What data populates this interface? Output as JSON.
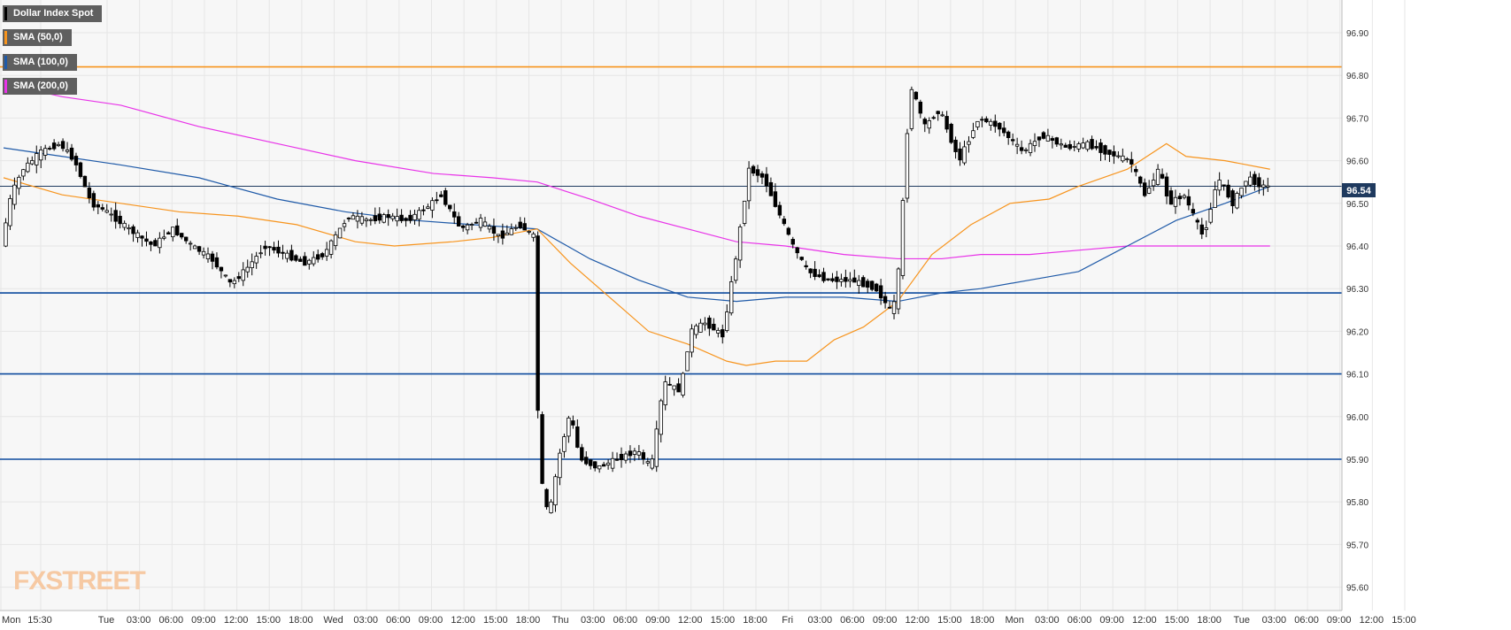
{
  "legend": [
    {
      "label": "Dollar Index Spot",
      "color": "#000000"
    },
    {
      "label": "SMA (50,0)",
      "color": "#f7941d"
    },
    {
      "label": "SMA (100,0)",
      "color": "#1f5aa8"
    },
    {
      "label": "SMA (200,0)",
      "color": "#e833e8"
    }
  ],
  "watermark": {
    "part1": "FX",
    "part2": "STREET"
  },
  "price_tag": "96.54",
  "colors": {
    "background": "#f7f7f7",
    "grid": "#e6e6e6",
    "candle_up": "#ffffff",
    "candle_down": "#000000",
    "sma50": "#f7941d",
    "sma100": "#1f5aa8",
    "sma200": "#e833e8",
    "resistance": "#f7941d",
    "support": "#0d4a9e",
    "tag_bg": "#1f3a5f"
  },
  "chart_data": {
    "type": "candlestick",
    "title": "Dollar Index Spot",
    "ylim": [
      95.55,
      96.95
    ],
    "y_ticks": [
      "96.90",
      "96.80",
      "96.70",
      "96.60",
      "96.50",
      "96.40",
      "96.30",
      "96.20",
      "96.10",
      "96.00",
      "95.90",
      "95.80",
      "95.70",
      "95.60"
    ],
    "x_ticks": [
      "Mon",
      "15:30",
      "Tue",
      "03:00",
      "06:00",
      "09:00",
      "12:00",
      "15:00",
      "18:00",
      "Wed",
      "03:00",
      "06:00",
      "09:00",
      "12:00",
      "15:00",
      "18:00",
      "Thu",
      "03:00",
      "06:00",
      "09:00",
      "12:00",
      "15:00",
      "18:00",
      "Fri",
      "03:00",
      "06:00",
      "09:00",
      "12:00",
      "15:00",
      "18:00",
      "Mon",
      "03:00",
      "06:00",
      "09:00",
      "12:00",
      "15:00",
      "18:00",
      "Tue",
      "03:00",
      "06:00",
      "09:00",
      "12:00",
      "15:00"
    ],
    "last_price": 96.54,
    "horizontal_levels": [
      {
        "value": 96.82,
        "kind": "resistance"
      },
      {
        "value": 96.29,
        "kind": "support"
      },
      {
        "value": 96.1,
        "kind": "support"
      },
      {
        "value": 95.9,
        "kind": "support"
      }
    ],
    "price_path": [
      [
        0,
        96.4
      ],
      [
        10,
        96.52
      ],
      [
        22,
        96.58
      ],
      [
        40,
        96.62
      ],
      [
        60,
        96.64
      ],
      [
        75,
        96.6
      ],
      [
        92,
        96.5
      ],
      [
        108,
        96.48
      ],
      [
        130,
        96.44
      ],
      [
        155,
        96.4
      ],
      [
        175,
        96.44
      ],
      [
        195,
        96.4
      ],
      [
        215,
        96.37
      ],
      [
        235,
        96.31
      ],
      [
        252,
        96.35
      ],
      [
        270,
        96.4
      ],
      [
        290,
        96.38
      ],
      [
        310,
        96.36
      ],
      [
        330,
        96.38
      ],
      [
        355,
        96.47
      ],
      [
        375,
        96.46
      ],
      [
        395,
        96.47
      ],
      [
        415,
        96.46
      ],
      [
        435,
        96.49
      ],
      [
        450,
        96.52
      ],
      [
        470,
        96.44
      ],
      [
        490,
        96.46
      ],
      [
        510,
        96.42
      ],
      [
        530,
        96.45
      ],
      [
        546,
        96.42
      ],
      [
        550,
        95.88
      ],
      [
        560,
        95.76
      ],
      [
        570,
        95.9
      ],
      [
        582,
        96.01
      ],
      [
        592,
        95.9
      ],
      [
        610,
        95.88
      ],
      [
        630,
        95.9
      ],
      [
        650,
        95.92
      ],
      [
        665,
        95.88
      ],
      [
        678,
        96.08
      ],
      [
        695,
        96.06
      ],
      [
        705,
        96.2
      ],
      [
        720,
        96.22
      ],
      [
        738,
        96.19
      ],
      [
        752,
        96.38
      ],
      [
        765,
        96.58
      ],
      [
        780,
        96.56
      ],
      [
        795,
        96.48
      ],
      [
        810,
        96.4
      ],
      [
        825,
        96.34
      ],
      [
        845,
        96.32
      ],
      [
        870,
        96.32
      ],
      [
        895,
        96.3
      ],
      [
        912,
        96.24
      ],
      [
        918,
        96.34
      ],
      [
        923,
        96.52
      ],
      [
        930,
        96.78
      ],
      [
        945,
        96.68
      ],
      [
        960,
        96.72
      ],
      [
        980,
        96.6
      ],
      [
        1000,
        96.7
      ],
      [
        1020,
        96.68
      ],
      [
        1045,
        96.62
      ],
      [
        1065,
        96.66
      ],
      [
        1090,
        96.63
      ],
      [
        1110,
        96.64
      ],
      [
        1130,
        96.62
      ],
      [
        1155,
        96.6
      ],
      [
        1170,
        96.52
      ],
      [
        1185,
        96.58
      ],
      [
        1195,
        96.5
      ],
      [
        1210,
        96.52
      ],
      [
        1230,
        96.42
      ],
      [
        1245,
        96.56
      ],
      [
        1260,
        96.5
      ],
      [
        1275,
        96.56
      ],
      [
        1290,
        96.54
      ],
      [
        1296,
        96.54
      ]
    ],
    "sma50_path": [
      [
        0,
        96.56
      ],
      [
        60,
        96.52
      ],
      [
        120,
        96.5
      ],
      [
        180,
        96.48
      ],
      [
        240,
        96.47
      ],
      [
        300,
        96.45
      ],
      [
        360,
        96.41
      ],
      [
        400,
        96.4
      ],
      [
        460,
        96.41
      ],
      [
        500,
        96.42
      ],
      [
        546,
        96.44
      ],
      [
        580,
        96.36
      ],
      [
        620,
        96.28
      ],
      [
        660,
        96.2
      ],
      [
        700,
        96.17
      ],
      [
        740,
        96.13
      ],
      [
        760,
        96.12
      ],
      [
        790,
        96.13
      ],
      [
        822,
        96.13
      ],
      [
        850,
        96.18
      ],
      [
        880,
        96.21
      ],
      [
        915,
        96.27
      ],
      [
        950,
        96.38
      ],
      [
        990,
        96.45
      ],
      [
        1030,
        96.5
      ],
      [
        1070,
        96.51
      ],
      [
        1100,
        96.54
      ],
      [
        1150,
        96.58
      ],
      [
        1190,
        96.64
      ],
      [
        1210,
        96.61
      ],
      [
        1250,
        96.6
      ],
      [
        1296,
        96.58
      ]
    ],
    "sma100_path": [
      [
        0,
        96.63
      ],
      [
        60,
        96.61
      ],
      [
        120,
        96.59
      ],
      [
        200,
        96.56
      ],
      [
        280,
        96.51
      ],
      [
        350,
        96.48
      ],
      [
        420,
        96.46
      ],
      [
        480,
        96.45
      ],
      [
        546,
        96.44
      ],
      [
        600,
        96.37
      ],
      [
        650,
        96.32
      ],
      [
        700,
        96.28
      ],
      [
        750,
        96.27
      ],
      [
        800,
        96.28
      ],
      [
        860,
        96.28
      ],
      [
        915,
        96.27
      ],
      [
        960,
        96.29
      ],
      [
        1000,
        96.3
      ],
      [
        1050,
        96.32
      ],
      [
        1100,
        96.34
      ],
      [
        1150,
        96.4
      ],
      [
        1200,
        96.46
      ],
      [
        1250,
        96.5
      ],
      [
        1296,
        96.54
      ]
    ],
    "sma200_path": [
      [
        0,
        96.78
      ],
      [
        60,
        96.75
      ],
      [
        120,
        96.73
      ],
      [
        200,
        96.68
      ],
      [
        280,
        96.64
      ],
      [
        360,
        96.6
      ],
      [
        440,
        96.57
      ],
      [
        500,
        96.56
      ],
      [
        546,
        96.55
      ],
      [
        600,
        96.51
      ],
      [
        650,
        96.47
      ],
      [
        700,
        96.44
      ],
      [
        750,
        96.41
      ],
      [
        800,
        96.4
      ],
      [
        860,
        96.38
      ],
      [
        915,
        96.37
      ],
      [
        960,
        96.37
      ],
      [
        1000,
        96.38
      ],
      [
        1050,
        96.38
      ],
      [
        1100,
        96.39
      ],
      [
        1150,
        96.4
      ],
      [
        1200,
        96.4
      ],
      [
        1250,
        96.4
      ],
      [
        1296,
        96.4
      ]
    ]
  }
}
